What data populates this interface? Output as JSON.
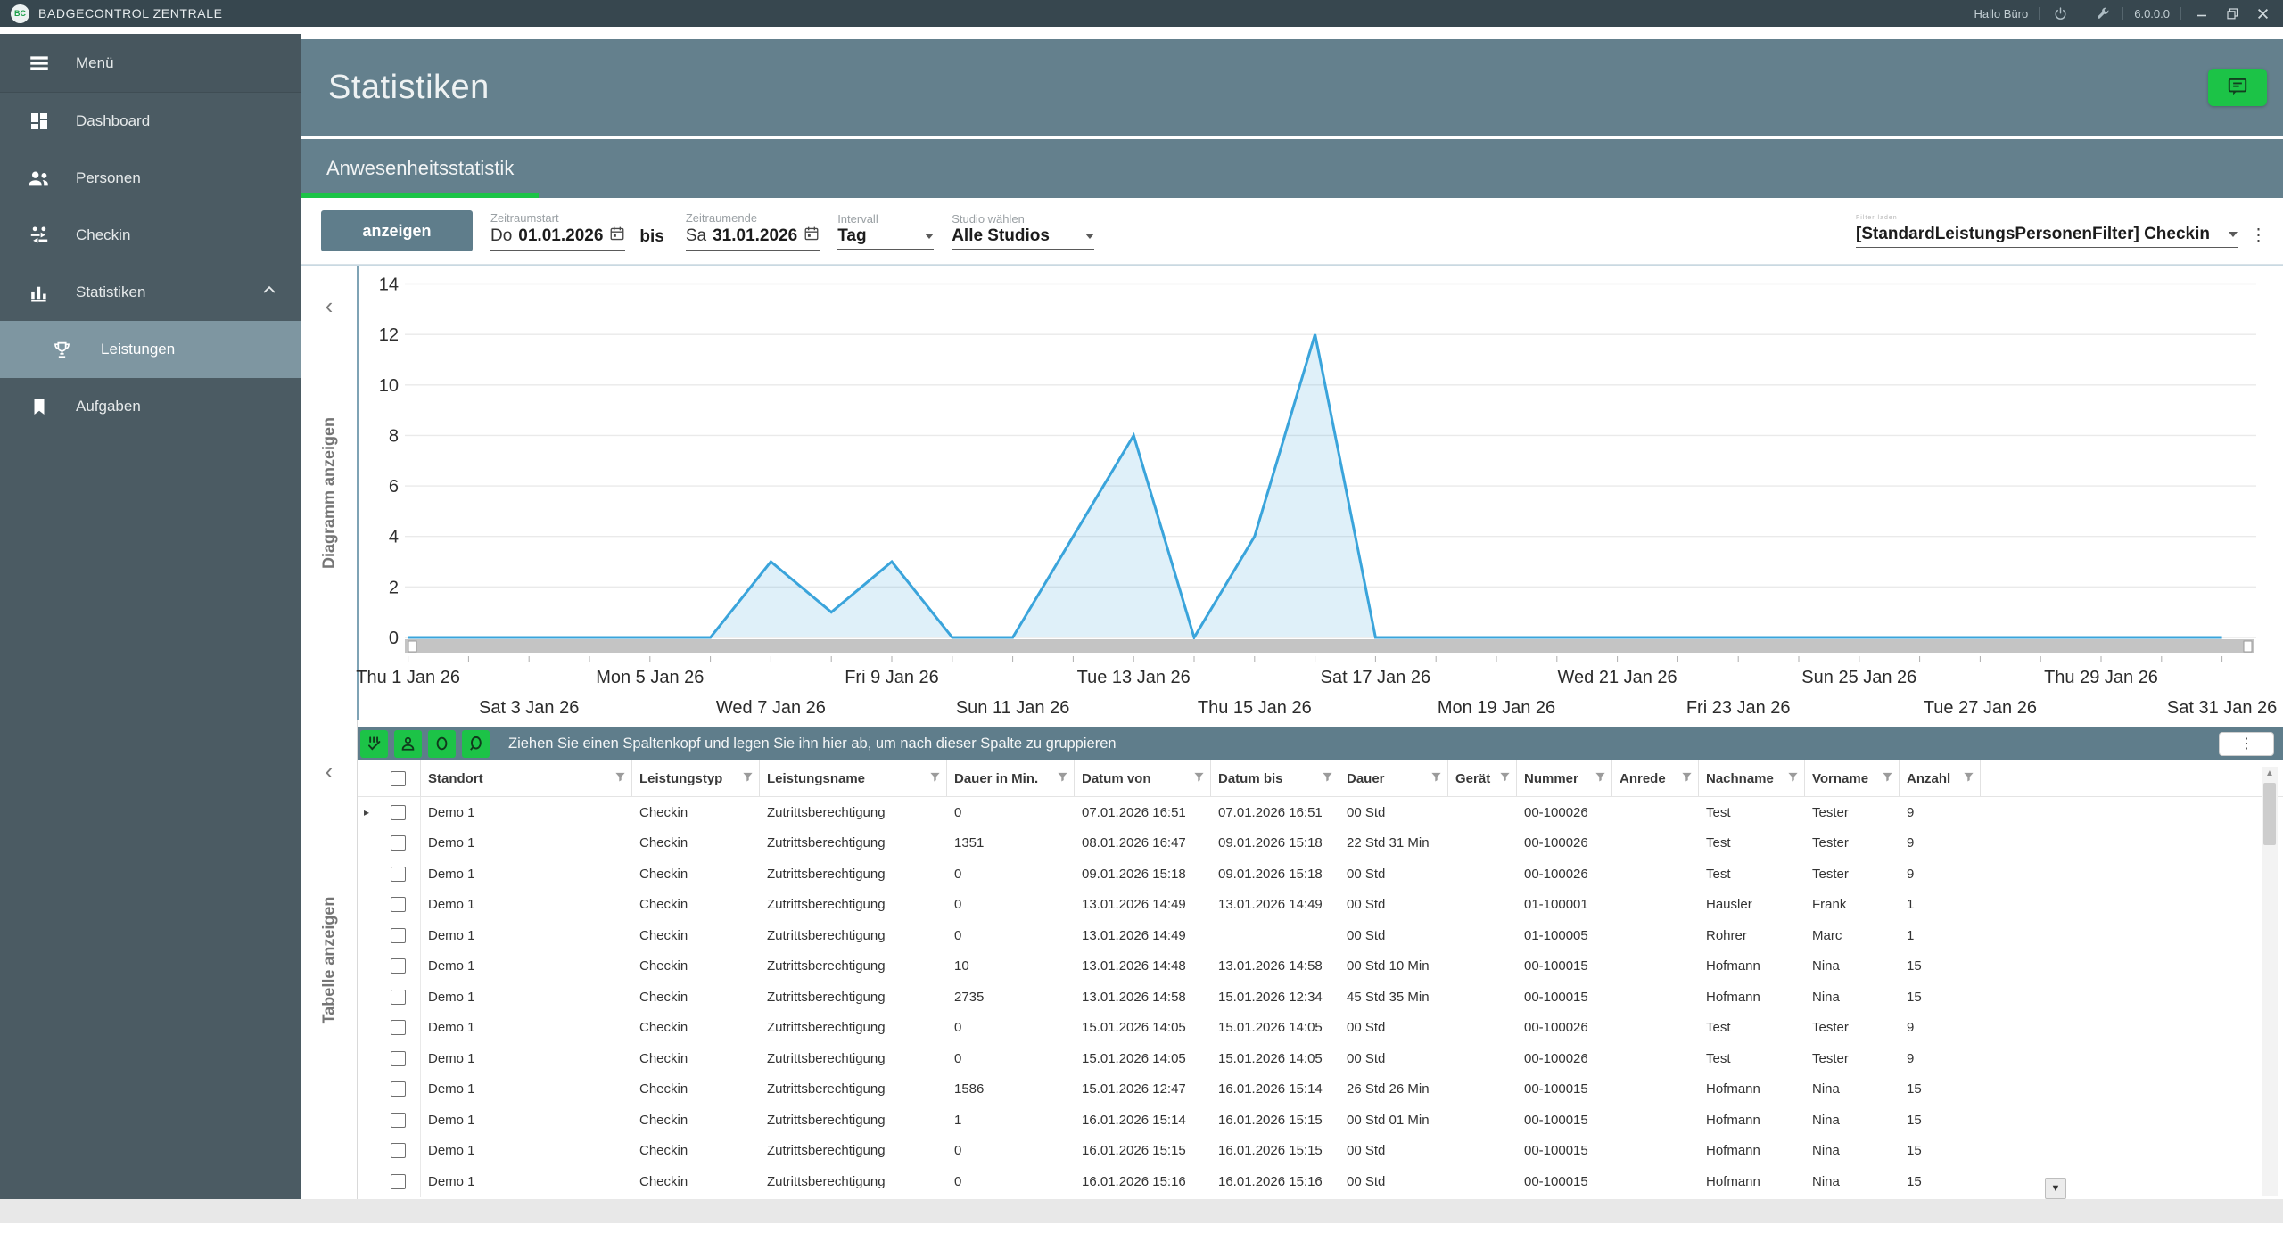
{
  "titlebar": {
    "logo_text": "BC",
    "app_name": "BADGECONTROL ZENTRALE",
    "user_greeting": "Hallo Büro",
    "version": "6.0.0.0"
  },
  "sidebar": {
    "items": [
      {
        "id": "menu",
        "label": "Menü",
        "icon": "hamburger-icon"
      },
      {
        "id": "dashboard",
        "label": "Dashboard",
        "icon": "dashboard-icon"
      },
      {
        "id": "personen",
        "label": "Personen",
        "icon": "people-icon"
      },
      {
        "id": "checkin",
        "label": "Checkin",
        "icon": "checkin-icon"
      },
      {
        "id": "statistiken",
        "label": "Statistiken",
        "icon": "bar-chart-icon",
        "expanded": true
      },
      {
        "id": "leistungen",
        "label": "Leistungen",
        "icon": "trophy-icon",
        "child": true,
        "selected": true
      },
      {
        "id": "aufgaben",
        "label": "Aufgaben",
        "icon": "bookmark-icon"
      }
    ]
  },
  "page": {
    "title": "Statistiken",
    "tab": "Anwesenheitsstatistik"
  },
  "filters": {
    "show_label": "anzeigen",
    "period_start": {
      "label": "Zeitraumstart",
      "day_prefix": "Do",
      "value": "01.01.2026"
    },
    "between_label": "bis",
    "period_end": {
      "label": "Zeitraumende",
      "day_prefix": "Sa",
      "value": "31.01.2026"
    },
    "interval": {
      "label": "Intervall",
      "value": "Tag"
    },
    "studio": {
      "label": "Studio wählen",
      "value": "Alle Studios"
    },
    "saved_filter": {
      "micro_label": "Filter laden",
      "value": "[StandardLeistungsPersonenFilter] Checkin"
    }
  },
  "chart_panel": {
    "collapse_label": "Diagramm anzeigen"
  },
  "chart_data": {
    "type": "area",
    "title": "Anwesenheitsstatistik",
    "x_start": "01.01.2026",
    "x_end": "31.01.2026",
    "interval": "Tag",
    "values": [
      0,
      0,
      0,
      0,
      0,
      0,
      3,
      1,
      3,
      0,
      0,
      4,
      8,
      0,
      4,
      12,
      0,
      0,
      0,
      0,
      0,
      0,
      0,
      0,
      0,
      0,
      0,
      0,
      0,
      0,
      0
    ],
    "ylim": [
      0,
      14
    ],
    "yticks": [
      0,
      2,
      4,
      6,
      8,
      10,
      12,
      14
    ],
    "xtick_labels": [
      "Thu 1 Jan 26",
      "Sat 3 Jan 26",
      "Mon 5 Jan 26",
      "Wed 7 Jan 26",
      "Fri 9 Jan 26",
      "Sun 11 Jan 26",
      "Tue 13 Jan 26",
      "Thu 15 Jan 26",
      "Sat 17 Jan 26",
      "Mon 19 Jan 26",
      "Wed 21 Jan 26",
      "Fri 23 Jan 26",
      "Sun 25 Jan 26",
      "Tue 27 Jan 26",
      "Thu 29 Jan 26",
      "Sat 31 Jan 26"
    ],
    "xtick_day_step": 2,
    "grid": true,
    "legend": null,
    "line_color": "#3AA4DB",
    "fill_color": "#E1F0F8"
  },
  "table_panel": {
    "collapse_label": "Tabelle anzeigen",
    "group_hint": "Ziehen Sie einen Spaltenkopf und legen Sie ihn hier ab, um nach dieser Spalte zu gruppieren",
    "toolbar_icons": [
      "calendar-check-icon",
      "person-icon",
      "circle-icon",
      "person-circle-icon"
    ]
  },
  "table": {
    "columns": [
      "Standort",
      "Leistungstyp",
      "Leistungsname",
      "Dauer in Min.",
      "Datum von",
      "Datum bis",
      "Dauer",
      "Gerät",
      "Nummer",
      "Anrede",
      "Nachname",
      "Vorname",
      "Anzahl"
    ],
    "rows": [
      [
        "Demo 1",
        "Checkin",
        "Zutrittsberechtigung",
        "0",
        "07.01.2026 16:51",
        "07.01.2026 16:51",
        "00 Std",
        "",
        "00-100026",
        "",
        "Test",
        "Tester",
        "9"
      ],
      [
        "Demo 1",
        "Checkin",
        "Zutrittsberechtigung",
        "1351",
        "08.01.2026 16:47",
        "09.01.2026 15:18",
        "22 Std 31 Min",
        "",
        "00-100026",
        "",
        "Test",
        "Tester",
        "9"
      ],
      [
        "Demo 1",
        "Checkin",
        "Zutrittsberechtigung",
        "0",
        "09.01.2026 15:18",
        "09.01.2026 15:18",
        "00 Std",
        "",
        "00-100026",
        "",
        "Test",
        "Tester",
        "9"
      ],
      [
        "Demo 1",
        "Checkin",
        "Zutrittsberechtigung",
        "0",
        "13.01.2026 14:49",
        "13.01.2026 14:49",
        "00 Std",
        "",
        "01-100001",
        "",
        "Hausler",
        "Frank",
        "1"
      ],
      [
        "Demo 1",
        "Checkin",
        "Zutrittsberechtigung",
        "0",
        "13.01.2026 14:49",
        "",
        "00 Std",
        "",
        "01-100005",
        "",
        "Rohrer",
        "Marc",
        "1"
      ],
      [
        "Demo 1",
        "Checkin",
        "Zutrittsberechtigung",
        "10",
        "13.01.2026 14:48",
        "13.01.2026 14:58",
        "00 Std 10 Min",
        "",
        "00-100015",
        "",
        "Hofmann",
        "Nina",
        "15"
      ],
      [
        "Demo 1",
        "Checkin",
        "Zutrittsberechtigung",
        "2735",
        "13.01.2026 14:58",
        "15.01.2026 12:34",
        "45 Std 35 Min",
        "",
        "00-100015",
        "",
        "Hofmann",
        "Nina",
        "15"
      ],
      [
        "Demo 1",
        "Checkin",
        "Zutrittsberechtigung",
        "0",
        "15.01.2026 14:05",
        "15.01.2026 14:05",
        "00 Std",
        "",
        "00-100026",
        "",
        "Test",
        "Tester",
        "9"
      ],
      [
        "Demo 1",
        "Checkin",
        "Zutrittsberechtigung",
        "0",
        "15.01.2026 14:05",
        "15.01.2026 14:05",
        "00 Std",
        "",
        "00-100026",
        "",
        "Test",
        "Tester",
        "9"
      ],
      [
        "Demo 1",
        "Checkin",
        "Zutrittsberechtigung",
        "1586",
        "15.01.2026 12:47",
        "16.01.2026 15:14",
        "26 Std 26 Min",
        "",
        "00-100015",
        "",
        "Hofmann",
        "Nina",
        "15"
      ],
      [
        "Demo 1",
        "Checkin",
        "Zutrittsberechtigung",
        "1",
        "16.01.2026 15:14",
        "16.01.2026 15:15",
        "00 Std 01 Min",
        "",
        "00-100015",
        "",
        "Hofmann",
        "Nina",
        "15"
      ],
      [
        "Demo 1",
        "Checkin",
        "Zutrittsberechtigung",
        "0",
        "16.01.2026 15:15",
        "16.01.2026 15:15",
        "00 Std",
        "",
        "00-100015",
        "",
        "Hofmann",
        "Nina",
        "15"
      ],
      [
        "Demo 1",
        "Checkin",
        "Zutrittsberechtigung",
        "0",
        "16.01.2026 15:16",
        "16.01.2026 15:16",
        "00 Std",
        "",
        "00-100015",
        "",
        "Hofmann",
        "Nina",
        "15"
      ]
    ]
  }
}
